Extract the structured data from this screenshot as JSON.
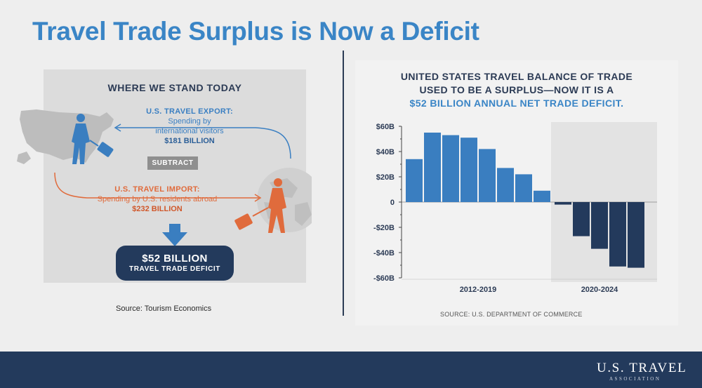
{
  "title": "Travel Trade Surplus is Now a Deficit",
  "left": {
    "heading": "WHERE WE STAND TODAY",
    "export": {
      "label": "U.S. TRAVEL EXPORT:",
      "desc1": "Spending by",
      "desc2": "international visitors",
      "value": "$181 BILLION"
    },
    "subtract": "SUBTRACT",
    "import": {
      "label": "U.S. TRAVEL IMPORT:",
      "desc": "Spending by U.S. residents abroad",
      "value": "$232 BILLION"
    },
    "deficit": {
      "value": "$52 BILLION",
      "label": "TRAVEL TRADE DEFICIT"
    },
    "source": "Source: Tourism Economics"
  },
  "right": {
    "heading_line1": "UNITED STATES TRAVEL BALANCE OF TRADE",
    "heading_line2": "USED TO BE A SURPLUS—NOW IT IS A",
    "heading_line3": "$52 BILLION ANNUAL NET TRADE DEFICIT.",
    "source": "SOURCE: U.S. DEPARTMENT OF COMMERCE"
  },
  "chart_data": {
    "type": "bar",
    "title": "",
    "xlabel": "",
    "ylabel": "",
    "ylim": [
      -60,
      60
    ],
    "yticks": [
      60,
      40,
      20,
      0,
      -20,
      -40,
      -60
    ],
    "ytick_labels": [
      "$60B",
      "$40B",
      "$20B",
      "0",
      "-$20B",
      "-$40B",
      "-$60B"
    ],
    "groups": [
      {
        "label": "2012-2019",
        "values": [
          34,
          55,
          53,
          51,
          42,
          27,
          22,
          9
        ],
        "color": "#3a7ec0"
      },
      {
        "label": "2020-2024",
        "values": [
          -2,
          -27,
          -37,
          -51,
          -52
        ],
        "color": "#233a5c"
      }
    ],
    "grid": false
  },
  "colors": {
    "title_blue": "#3a85c6",
    "navy": "#233a5c",
    "bar_blue": "#3a7ec0",
    "orange": "#e06b3c"
  },
  "footer": {
    "logo_main": "U.S. TRAVEL",
    "logo_sub": "ASSOCIATION"
  }
}
